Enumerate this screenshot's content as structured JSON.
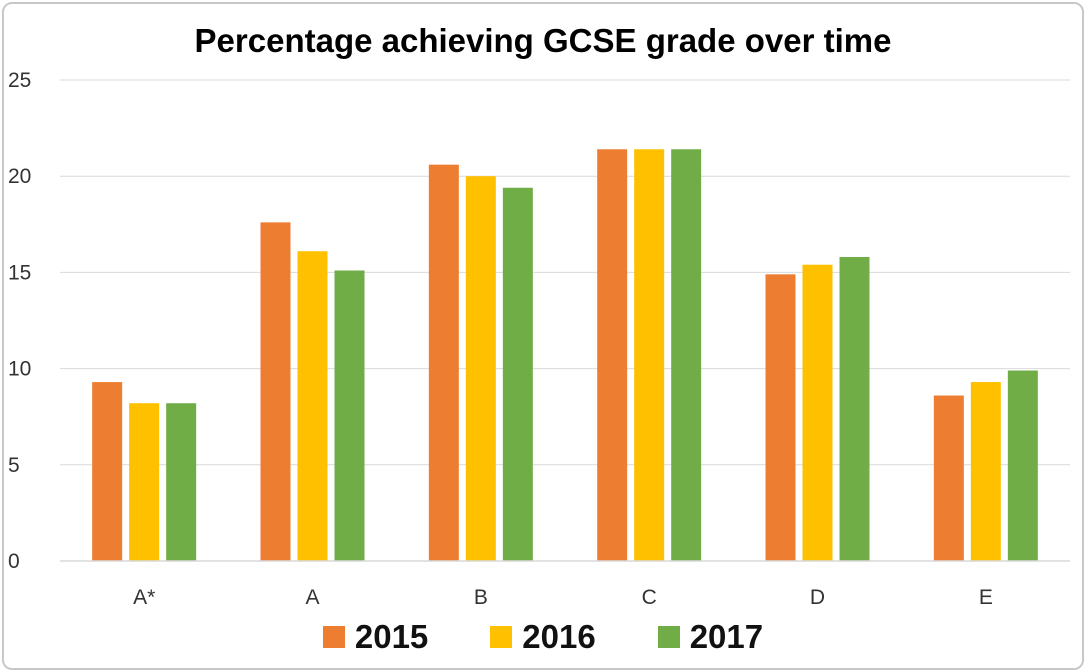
{
  "chart_data": {
    "type": "bar",
    "title": "Percentage achieving GCSE grade over time",
    "xlabel": "",
    "ylabel": "",
    "categories": [
      "A*",
      "A",
      "B",
      "C",
      "D",
      "E"
    ],
    "series": [
      {
        "name": "2015",
        "color": "#ED7D31",
        "values": [
          9.3,
          17.6,
          20.6,
          21.4,
          14.9,
          8.6
        ]
      },
      {
        "name": "2016",
        "color": "#FFC000",
        "values": [
          8.2,
          16.1,
          20.0,
          21.4,
          15.4,
          9.3
        ]
      },
      {
        "name": "2017",
        "color": "#70AD47",
        "values": [
          8.2,
          15.1,
          19.4,
          21.4,
          15.8,
          9.9
        ]
      }
    ],
    "ylim": [
      0,
      25
    ],
    "yticks": [
      0,
      5,
      10,
      15,
      20,
      25
    ],
    "grid": true,
    "legend_position": "bottom"
  }
}
